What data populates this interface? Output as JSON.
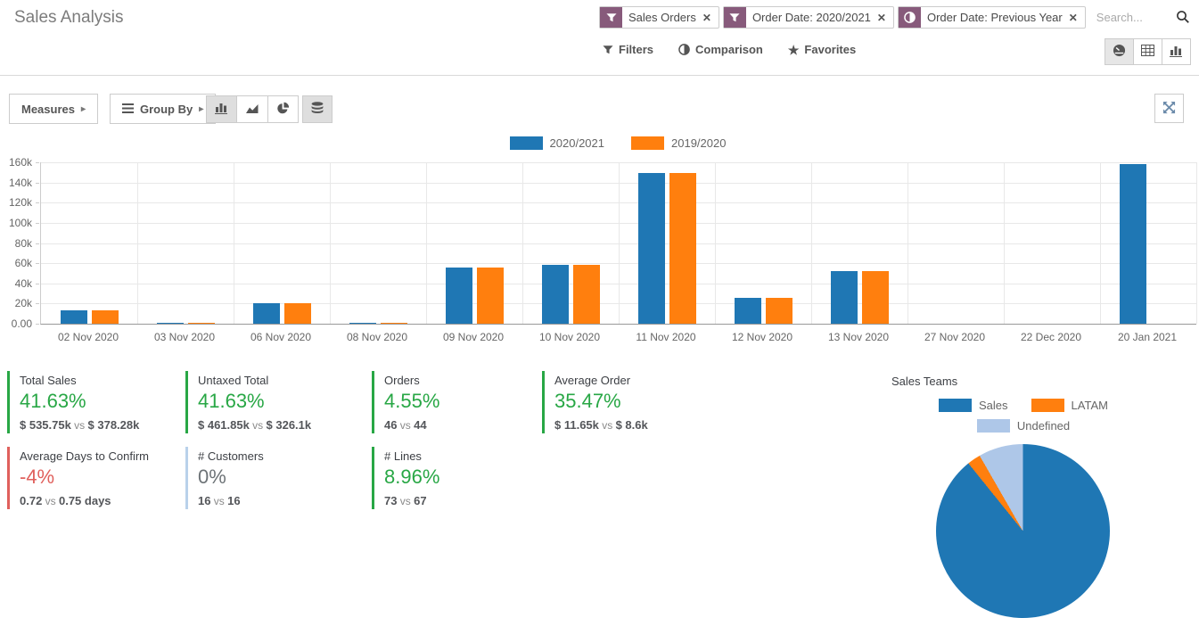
{
  "header": {
    "title": "Sales Analysis",
    "facets": [
      {
        "icon": "filter-icon",
        "label": "Sales Orders",
        "remove": "✕"
      },
      {
        "icon": "filter-icon",
        "label": "Order Date: 2020/2021",
        "remove": "✕"
      },
      {
        "icon": "comparison-icon",
        "label": "Order Date: Previous Year",
        "remove": "✕"
      }
    ],
    "search_placeholder": "Search...",
    "menus": [
      {
        "icon": "filter-icon",
        "label": "Filters"
      },
      {
        "icon": "comparison-icon",
        "label": "Comparison"
      },
      {
        "icon": "star-icon",
        "label": "Favorites"
      }
    ],
    "view_switcher": [
      {
        "icon": "dashboard-icon",
        "name": "dashboard",
        "active": true
      },
      {
        "icon": "list-icon",
        "name": "list",
        "active": false
      },
      {
        "icon": "chart-icon",
        "name": "graph",
        "active": false
      }
    ]
  },
  "toolbar": {
    "measures_label": "Measures",
    "group_by_label": "Group By",
    "caret": "▸",
    "chart_type_buttons": [
      {
        "icon": "bar-chart-icon",
        "name": "bar",
        "active": true
      },
      {
        "icon": "area-chart-icon",
        "name": "line",
        "active": false
      },
      {
        "icon": "pie-chart-icon",
        "name": "pie",
        "active": false
      }
    ],
    "stacked_active": true
  },
  "chart_data": [
    {
      "type": "bar",
      "title": "",
      "categories": [
        "02 Nov 2020",
        "03 Nov 2020",
        "06 Nov 2020",
        "08 Nov 2020",
        "09 Nov 2020",
        "10 Nov 2020",
        "11 Nov 2020",
        "12 Nov 2020",
        "13 Nov 2020",
        "27 Nov 2020",
        "22 Dec 2020",
        "20 Jan 2021"
      ],
      "series": [
        {
          "name": "2020/2021",
          "color": "#1f77b4",
          "values": [
            13000,
            1000,
            20000,
            500,
            56000,
            58000,
            149000,
            26000,
            52000,
            0,
            0,
            158000
          ]
        },
        {
          "name": "2019/2020",
          "color": "#ff7f0e",
          "values": [
            13000,
            1000,
            20000,
            500,
            56000,
            58000,
            149000,
            26000,
            52000,
            0,
            0,
            0
          ]
        }
      ],
      "xlabel": "",
      "ylabel": "",
      "ylim": [
        0,
        160000
      ],
      "yticks": [
        "160k",
        "140k",
        "120k",
        "100k",
        "80k",
        "60k",
        "40k",
        "20k",
        "0.00"
      ],
      "grid": true,
      "legend_position": "top"
    },
    {
      "type": "pie",
      "title": "Sales Teams",
      "slices": [
        {
          "label": "Sales",
          "color": "#1f77b4",
          "pct": 89.2
        },
        {
          "label": "LATAM",
          "color": "#ff7f0e",
          "pct": 2.5
        },
        {
          "label": "Undefined",
          "color": "#aec7e8",
          "pct": 8.3
        }
      ],
      "legend_position": "top"
    }
  ],
  "stats": {
    "vs_label": "vs",
    "colors": {
      "up": "#28a745",
      "down": "#e0605c",
      "flat_text": "#6d7377",
      "flat_border": "#b9d1ea"
    },
    "rows": [
      [
        {
          "title": "Total Sales",
          "value": "41.63%",
          "trend": "up",
          "left": "$ 535.75k",
          "right": "$ 378.28k"
        },
        {
          "title": "Untaxed Total",
          "value": "41.63%",
          "trend": "up",
          "left": "$ 461.85k",
          "right": "$ 326.1k"
        },
        {
          "title": "Orders",
          "value": "4.55%",
          "trend": "up",
          "left": "46",
          "right": "44"
        },
        {
          "title": "Average Order",
          "value": "35.47%",
          "trend": "up",
          "left": "$ 11.65k",
          "right": "$ 8.6k"
        }
      ],
      [
        {
          "title": "Average Days to Confirm",
          "value": "-4%",
          "trend": "down",
          "left": "0.72",
          "right": "0.75 days"
        },
        {
          "title": "# Customers",
          "value": "0%",
          "trend": "flat",
          "left": "16",
          "right": "16"
        },
        {
          "title": "# Lines",
          "value": "8.96%",
          "trend": "up",
          "left": "73",
          "right": "67"
        }
      ]
    ]
  }
}
